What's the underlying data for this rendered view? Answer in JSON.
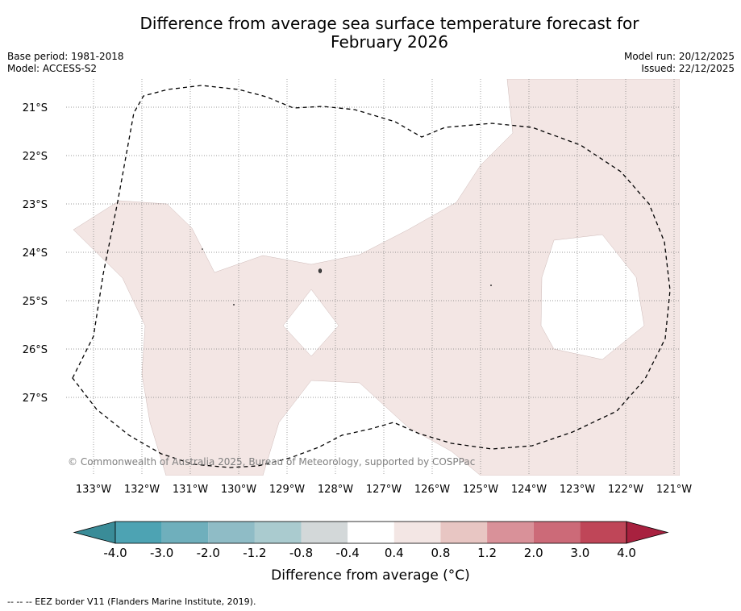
{
  "title_line1": "Difference from average sea surface temperature forecast for",
  "title_line2": "February 2026",
  "base_period": "Base period: 1981-2018",
  "model": "Model: ACCESS-S2",
  "model_run": "Model run: 20/12/2025",
  "issued": "Issued: 22/12/2025",
  "copyright": "© Commonwealth of Australia 2025, Bureau of Meteorology, supported by COSPPac",
  "map": {
    "lat_labels": [
      "21°S",
      "22°S",
      "23°S",
      "24°S",
      "25°S",
      "26°S",
      "27°S"
    ],
    "lon_labels": [
      "133°W",
      "132°W",
      "131°W",
      "130°W",
      "129°W",
      "128°W",
      "127°W",
      "126°W",
      "125°W",
      "124°W",
      "123°W",
      "122°W",
      "121°W"
    ],
    "anomaly_fill_color": "#f3e6e4",
    "anomaly_class": "0.4 to 0.8"
  },
  "colorbar": {
    "label": "Difference from average (°C)",
    "ticks": [
      "-4.0",
      "-3.0",
      "-2.0",
      "-1.2",
      "-0.8",
      "-0.4",
      "0.4",
      "0.8",
      "1.2",
      "2.0",
      "3.0",
      "4.0"
    ],
    "colors": [
      "#4da3b3",
      "#6fafbc",
      "#8fbcc6",
      "#aacbcf",
      "#d3d8d9",
      "#ffffff",
      "#f3e6e4",
      "#e8c6c3",
      "#d99199",
      "#cc6a78",
      "#bf4658"
    ],
    "under_color": "#3a8c98",
    "over_color": "#a8213f"
  },
  "footnote": "--  --  -- EEZ border V11 (Flanders Marine Institute, 2019)."
}
